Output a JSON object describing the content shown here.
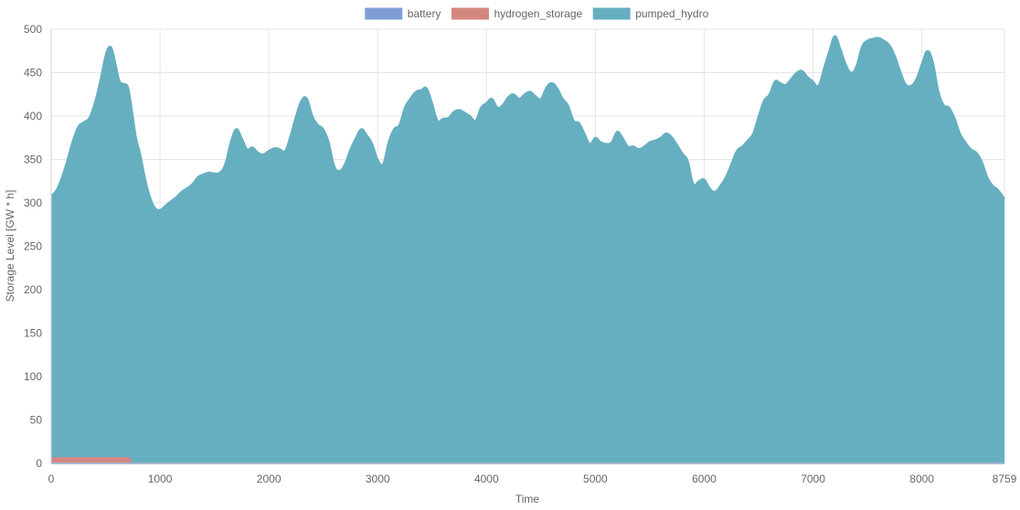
{
  "chart_data": {
    "type": "area",
    "xlabel": "Time",
    "ylabel": "Storage Level [GW * h]",
    "xlim": [
      0,
      8759
    ],
    "ylim": [
      0,
      500
    ],
    "x_ticks": [
      0,
      1000,
      2000,
      3000,
      4000,
      5000,
      6000,
      7000,
      8000,
      8759
    ],
    "y_ticks": [
      0,
      50,
      100,
      150,
      200,
      250,
      300,
      350,
      400,
      450,
      500
    ],
    "grid": true,
    "legend_position": "top-center",
    "series": [
      {
        "name": "battery",
        "color": "#7f9fd4",
        "points": [
          [
            0,
            0
          ],
          [
            8759,
            0
          ]
        ]
      },
      {
        "name": "hydrogen_storage",
        "color": "#d4877f",
        "points": [
          [
            0,
            6
          ],
          [
            720,
            6
          ],
          [
            730,
            0
          ],
          [
            8759,
            0
          ]
        ]
      },
      {
        "name": "pumped_hydro",
        "color": "#66afc0",
        "points": [
          [
            0,
            308
          ],
          [
            50,
            315
          ],
          [
            100,
            330
          ],
          [
            150,
            350
          ],
          [
            200,
            372
          ],
          [
            250,
            388
          ],
          [
            300,
            393
          ],
          [
            350,
            398
          ],
          [
            400,
            415
          ],
          [
            450,
            440
          ],
          [
            500,
            470
          ],
          [
            540,
            480
          ],
          [
            570,
            472
          ],
          [
            600,
            455
          ],
          [
            630,
            440
          ],
          [
            670,
            437
          ],
          [
            700,
            435
          ],
          [
            720,
            425
          ],
          [
            750,
            400
          ],
          [
            780,
            375
          ],
          [
            820,
            355
          ],
          [
            860,
            330
          ],
          [
            900,
            310
          ],
          [
            950,
            295
          ],
          [
            1000,
            292
          ],
          [
            1050,
            297
          ],
          [
            1100,
            302
          ],
          [
            1150,
            307
          ],
          [
            1200,
            313
          ],
          [
            1250,
            317
          ],
          [
            1300,
            322
          ],
          [
            1350,
            330
          ],
          [
            1400,
            333
          ],
          [
            1450,
            335
          ],
          [
            1500,
            334
          ],
          [
            1550,
            335
          ],
          [
            1600,
            345
          ],
          [
            1650,
            370
          ],
          [
            1700,
            385
          ],
          [
            1750,
            375
          ],
          [
            1800,
            362
          ],
          [
            1850,
            364
          ],
          [
            1900,
            358
          ],
          [
            1950,
            356
          ],
          [
            2000,
            360
          ],
          [
            2050,
            363
          ],
          [
            2100,
            362
          ],
          [
            2150,
            360
          ],
          [
            2200,
            378
          ],
          [
            2250,
            400
          ],
          [
            2300,
            418
          ],
          [
            2350,
            420
          ],
          [
            2400,
            400
          ],
          [
            2450,
            390
          ],
          [
            2500,
            385
          ],
          [
            2550,
            370
          ],
          [
            2600,
            343
          ],
          [
            2650,
            337
          ],
          [
            2700,
            345
          ],
          [
            2750,
            362
          ],
          [
            2800,
            375
          ],
          [
            2850,
            385
          ],
          [
            2900,
            378
          ],
          [
            2950,
            368
          ],
          [
            3000,
            350
          ],
          [
            3050,
            345
          ],
          [
            3100,
            370
          ],
          [
            3150,
            385
          ],
          [
            3200,
            390
          ],
          [
            3250,
            410
          ],
          [
            3300,
            420
          ],
          [
            3350,
            428
          ],
          [
            3400,
            430
          ],
          [
            3450,
            432
          ],
          [
            3500,
            415
          ],
          [
            3550,
            395
          ],
          [
            3600,
            397
          ],
          [
            3650,
            398
          ],
          [
            3700,
            405
          ],
          [
            3750,
            407
          ],
          [
            3800,
            404
          ],
          [
            3850,
            400
          ],
          [
            3900,
            395
          ],
          [
            3950,
            410
          ],
          [
            4000,
            415
          ],
          [
            4050,
            420
          ],
          [
            4100,
            410
          ],
          [
            4150,
            413
          ],
          [
            4200,
            422
          ],
          [
            4250,
            425
          ],
          [
            4300,
            420
          ],
          [
            4350,
            425
          ],
          [
            4400,
            428
          ],
          [
            4450,
            423
          ],
          [
            4500,
            420
          ],
          [
            4550,
            433
          ],
          [
            4600,
            438
          ],
          [
            4650,
            432
          ],
          [
            4700,
            420
          ],
          [
            4750,
            412
          ],
          [
            4800,
            395
          ],
          [
            4850,
            392
          ],
          [
            4900,
            380
          ],
          [
            4950,
            368
          ],
          [
            5000,
            375
          ],
          [
            5050,
            370
          ],
          [
            5100,
            368
          ],
          [
            5150,
            370
          ],
          [
            5200,
            382
          ],
          [
            5250,
            375
          ],
          [
            5300,
            365
          ],
          [
            5350,
            365
          ],
          [
            5400,
            362
          ],
          [
            5450,
            365
          ],
          [
            5500,
            370
          ],
          [
            5550,
            372
          ],
          [
            5600,
            375
          ],
          [
            5650,
            380
          ],
          [
            5700,
            376
          ],
          [
            5750,
            367
          ],
          [
            5800,
            357
          ],
          [
            5850,
            348
          ],
          [
            5900,
            322
          ],
          [
            5950,
            325
          ],
          [
            6000,
            327
          ],
          [
            6050,
            317
          ],
          [
            6100,
            313
          ],
          [
            6150,
            320
          ],
          [
            6200,
            330
          ],
          [
            6250,
            345
          ],
          [
            6300,
            360
          ],
          [
            6350,
            365
          ],
          [
            6400,
            372
          ],
          [
            6450,
            380
          ],
          [
            6500,
            400
          ],
          [
            6550,
            418
          ],
          [
            6600,
            425
          ],
          [
            6650,
            440
          ],
          [
            6700,
            438
          ],
          [
            6750,
            436
          ],
          [
            6800,
            443
          ],
          [
            6850,
            450
          ],
          [
            6900,
            452
          ],
          [
            6950,
            445
          ],
          [
            7000,
            440
          ],
          [
            7050,
            435
          ],
          [
            7100,
            455
          ],
          [
            7150,
            475
          ],
          [
            7200,
            492
          ],
          [
            7250,
            478
          ],
          [
            7300,
            460
          ],
          [
            7350,
            450
          ],
          [
            7400,
            458
          ],
          [
            7450,
            480
          ],
          [
            7500,
            487
          ],
          [
            7550,
            489
          ],
          [
            7600,
            490
          ],
          [
            7650,
            487
          ],
          [
            7700,
            482
          ],
          [
            7750,
            470
          ],
          [
            7800,
            452
          ],
          [
            7850,
            437
          ],
          [
            7900,
            435
          ],
          [
            7950,
            443
          ],
          [
            8000,
            460
          ],
          [
            8050,
            475
          ],
          [
            8100,
            463
          ],
          [
            8150,
            430
          ],
          [
            8200,
            413
          ],
          [
            8250,
            410
          ],
          [
            8300,
            398
          ],
          [
            8350,
            380
          ],
          [
            8400,
            370
          ],
          [
            8450,
            362
          ],
          [
            8500,
            358
          ],
          [
            8550,
            348
          ],
          [
            8600,
            330
          ],
          [
            8650,
            320
          ],
          [
            8700,
            315
          ],
          [
            8759,
            305
          ]
        ]
      }
    ]
  }
}
